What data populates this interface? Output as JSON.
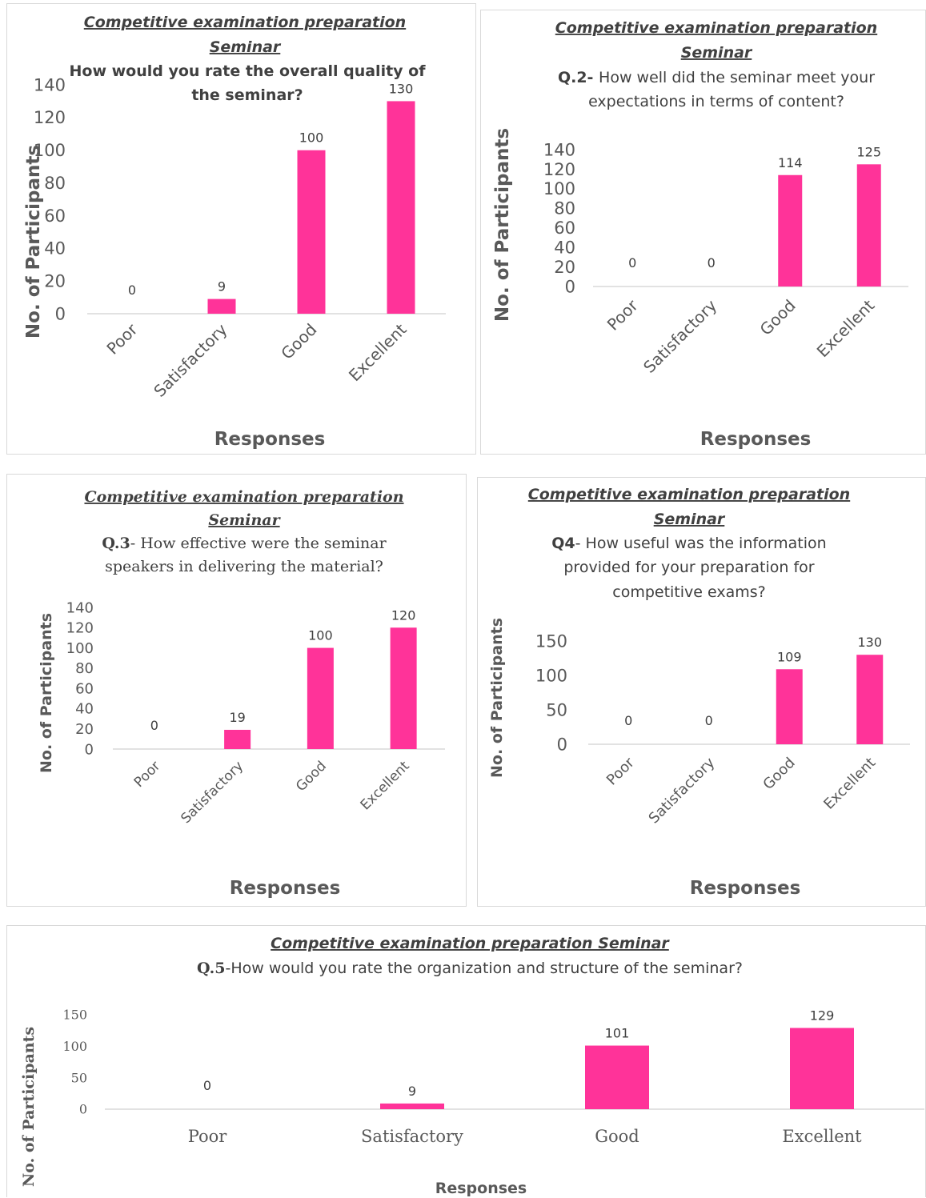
{
  "colors": {
    "bar": "#ff3399",
    "axis_line": "#d9d9d9",
    "text": "#404040",
    "panel_border": "#d9d9d9"
  },
  "chart_data": [
    {
      "type": "bar",
      "title": "Competitive examination preparation Seminar",
      "question": "How would you rate the overall quality of the seminar?",
      "categories": [
        "Poor",
        "Satisfactory",
        "Good",
        "Excellent"
      ],
      "values": [
        0,
        9,
        100,
        130
      ],
      "data_labels": [
        "0",
        "9",
        "100",
        "130"
      ],
      "yticks": [
        "0",
        "20",
        "40",
        "60",
        "80",
        "100",
        "120",
        "140"
      ],
      "ylim": [
        0,
        140
      ],
      "xlabel": "Responses",
      "ylabel": "No. of Participants",
      "grid": false,
      "legend": "none"
    },
    {
      "type": "bar",
      "title": "Competitive examination preparation Seminar",
      "question_prefix": "Q.2-",
      "question": "How well did the seminar meet your expectations in terms of content?",
      "categories": [
        "Poor",
        "Satisfactory",
        "Good",
        "Excellent"
      ],
      "values": [
        0,
        0,
        114,
        125
      ],
      "data_labels": [
        "0",
        "0",
        "114",
        "125"
      ],
      "yticks": [
        "0",
        "20",
        "40",
        "60",
        "80",
        "100",
        "120",
        "140"
      ],
      "ylim": [
        0,
        140
      ],
      "xlabel": "Responses",
      "ylabel": "No. of Participants",
      "grid": false,
      "legend": "none"
    },
    {
      "type": "bar",
      "title": "Competitive examination preparation Seminar",
      "question_prefix": "Q.3",
      "question": "- How effective were the seminar speakers in delivering the material?",
      "categories": [
        "Poor",
        "Satisfactory",
        "Good",
        "Excellent"
      ],
      "values": [
        0,
        19,
        100,
        120
      ],
      "data_labels": [
        "0",
        "19",
        "100",
        "120"
      ],
      "yticks": [
        "0",
        "20",
        "40",
        "60",
        "80",
        "100",
        "120",
        "140"
      ],
      "ylim": [
        0,
        140
      ],
      "xlabel": "Responses",
      "ylabel": "No. of Participants",
      "grid": false,
      "legend": "none"
    },
    {
      "type": "bar",
      "title": "Competitive examination preparation Seminar",
      "question_prefix": "Q4",
      "question": "- How useful was the information provided for your preparation for competitive exams?",
      "categories": [
        "Poor",
        "Satisfactory",
        "Good",
        "Excellent"
      ],
      "values": [
        0,
        0,
        109,
        130
      ],
      "data_labels": [
        "0",
        "0",
        "109",
        "130"
      ],
      "yticks": [
        "0",
        "50",
        "100",
        "150"
      ],
      "ylim": [
        0,
        150
      ],
      "xlabel": "Responses",
      "ylabel": "No. of Participants",
      "grid": false,
      "legend": "none"
    },
    {
      "type": "bar",
      "title": "Competitive examination preparation Seminar",
      "question_prefix": "Q.5",
      "question": "-How would you rate the organization and structure of the seminar?",
      "categories": [
        "Poor",
        "Satisfactory",
        "Good",
        "Excellent"
      ],
      "values": [
        0,
        9,
        101,
        129
      ],
      "data_labels": [
        "0",
        "9",
        "101",
        "129"
      ],
      "yticks": [
        "0",
        "50",
        "100",
        "150"
      ],
      "ylim": [
        0,
        150
      ],
      "xlabel": "Responses",
      "ylabel": "No. of Participants",
      "grid": false,
      "legend": "none"
    }
  ]
}
